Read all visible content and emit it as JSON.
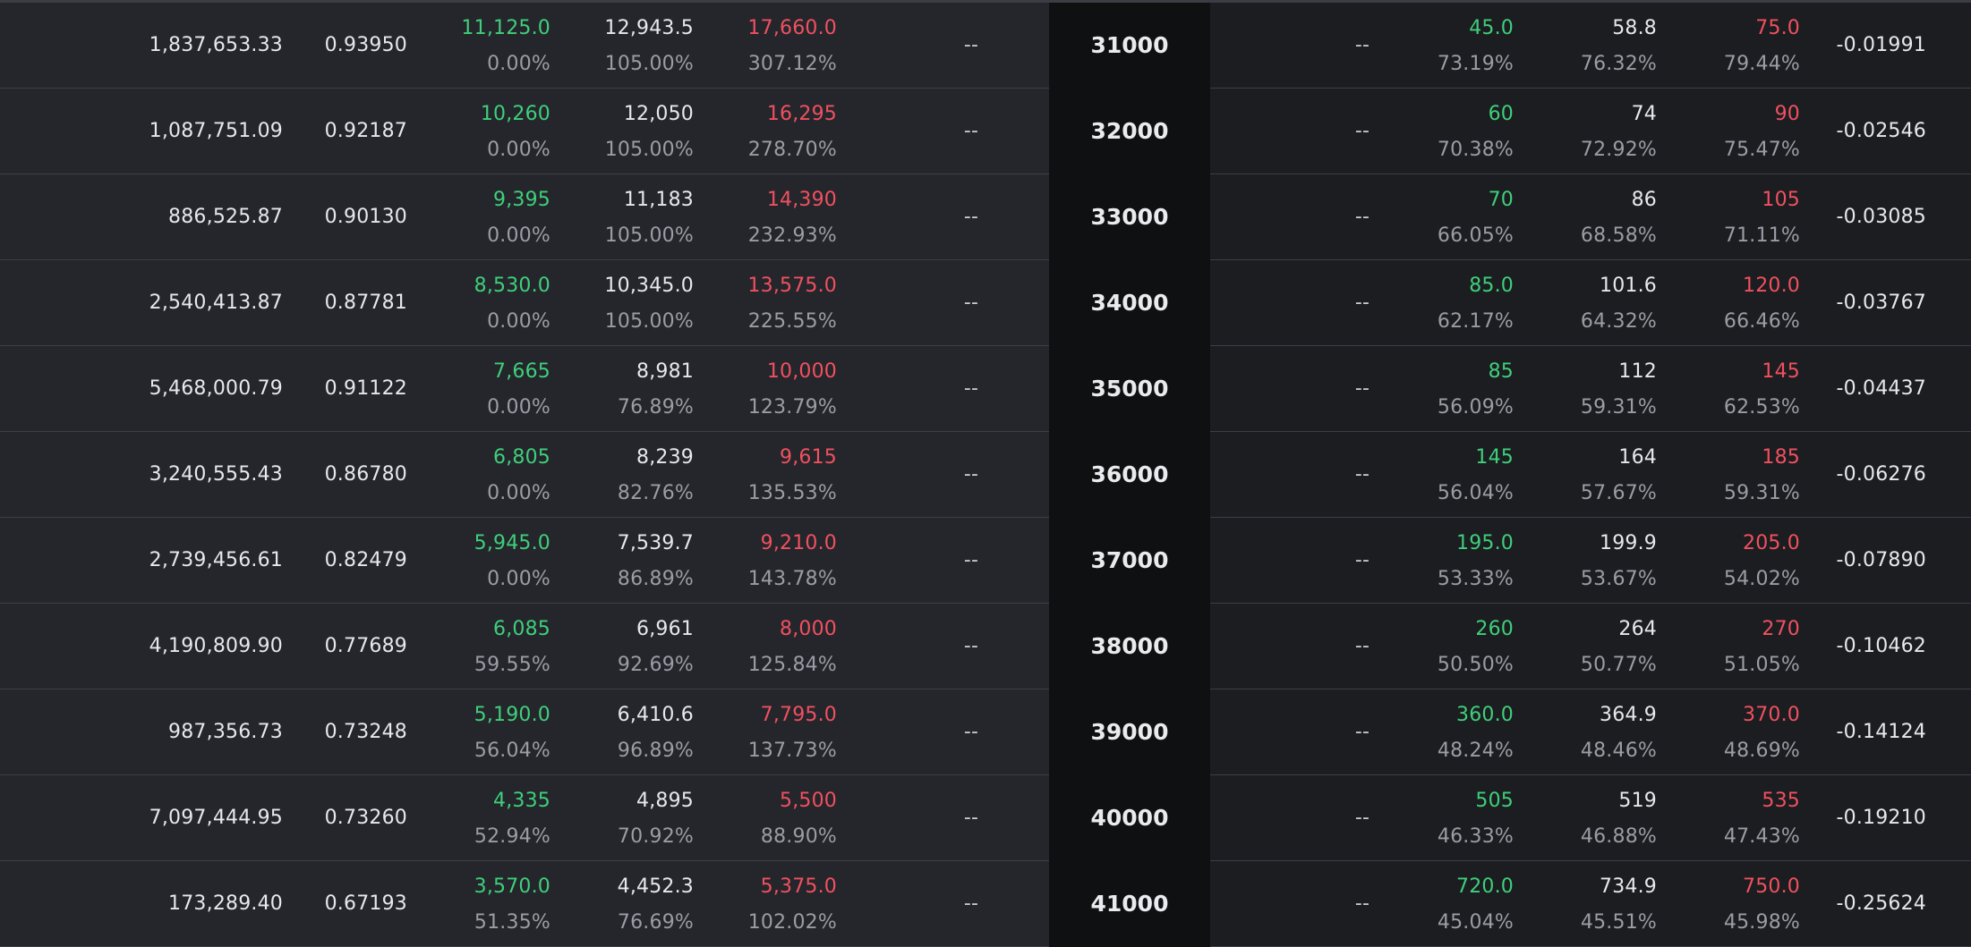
{
  "rows": [
    {
      "strike": "31000",
      "call": {
        "oi": "1,837,653.33",
        "delta": "0.93950",
        "bid": "11,125.0",
        "bid_iv": "0.00%",
        "mark": "12,943.5",
        "mark_iv": "105.00%",
        "ask": "17,660.0",
        "ask_iv": "307.12%",
        "last": "--"
      },
      "put": {
        "last": "--",
        "bid": "45.0",
        "bid_iv": "73.19%",
        "mark": "58.8",
        "mark_iv": "76.32%",
        "ask": "75.0",
        "ask_iv": "79.44%",
        "delta": "-0.01991"
      }
    },
    {
      "strike": "32000",
      "call": {
        "oi": "1,087,751.09",
        "delta": "0.92187",
        "bid": "10,260",
        "bid_iv": "0.00%",
        "mark": "12,050",
        "mark_iv": "105.00%",
        "ask": "16,295",
        "ask_iv": "278.70%",
        "last": "--"
      },
      "put": {
        "last": "--",
        "bid": "60",
        "bid_iv": "70.38%",
        "mark": "74",
        "mark_iv": "72.92%",
        "ask": "90",
        "ask_iv": "75.47%",
        "delta": "-0.02546"
      }
    },
    {
      "strike": "33000",
      "call": {
        "oi": "886,525.87",
        "delta": "0.90130",
        "bid": "9,395",
        "bid_iv": "0.00%",
        "mark": "11,183",
        "mark_iv": "105.00%",
        "ask": "14,390",
        "ask_iv": "232.93%",
        "last": "--"
      },
      "put": {
        "last": "--",
        "bid": "70",
        "bid_iv": "66.05%",
        "mark": "86",
        "mark_iv": "68.58%",
        "ask": "105",
        "ask_iv": "71.11%",
        "delta": "-0.03085"
      }
    },
    {
      "strike": "34000",
      "call": {
        "oi": "2,540,413.87",
        "delta": "0.87781",
        "bid": "8,530.0",
        "bid_iv": "0.00%",
        "mark": "10,345.0",
        "mark_iv": "105.00%",
        "ask": "13,575.0",
        "ask_iv": "225.55%",
        "last": "--"
      },
      "put": {
        "last": "--",
        "bid": "85.0",
        "bid_iv": "62.17%",
        "mark": "101.6",
        "mark_iv": "64.32%",
        "ask": "120.0",
        "ask_iv": "66.46%",
        "delta": "-0.03767"
      }
    },
    {
      "strike": "35000",
      "call": {
        "oi": "5,468,000.79",
        "delta": "0.91122",
        "bid": "7,665",
        "bid_iv": "0.00%",
        "mark": "8,981",
        "mark_iv": "76.89%",
        "ask": "10,000",
        "ask_iv": "123.79%",
        "last": "--"
      },
      "put": {
        "last": "--",
        "bid": "85",
        "bid_iv": "56.09%",
        "mark": "112",
        "mark_iv": "59.31%",
        "ask": "145",
        "ask_iv": "62.53%",
        "delta": "-0.04437"
      }
    },
    {
      "strike": "36000",
      "call": {
        "oi": "3,240,555.43",
        "delta": "0.86780",
        "bid": "6,805",
        "bid_iv": "0.00%",
        "mark": "8,239",
        "mark_iv": "82.76%",
        "ask": "9,615",
        "ask_iv": "135.53%",
        "last": "--"
      },
      "put": {
        "last": "--",
        "bid": "145",
        "bid_iv": "56.04%",
        "mark": "164",
        "mark_iv": "57.67%",
        "ask": "185",
        "ask_iv": "59.31%",
        "delta": "-0.06276"
      }
    },
    {
      "strike": "37000",
      "call": {
        "oi": "2,739,456.61",
        "delta": "0.82479",
        "bid": "5,945.0",
        "bid_iv": "0.00%",
        "mark": "7,539.7",
        "mark_iv": "86.89%",
        "ask": "9,210.0",
        "ask_iv": "143.78%",
        "last": "--"
      },
      "put": {
        "last": "--",
        "bid": "195.0",
        "bid_iv": "53.33%",
        "mark": "199.9",
        "mark_iv": "53.67%",
        "ask": "205.0",
        "ask_iv": "54.02%",
        "delta": "-0.07890"
      }
    },
    {
      "strike": "38000",
      "call": {
        "oi": "4,190,809.90",
        "delta": "0.77689",
        "bid": "6,085",
        "bid_iv": "59.55%",
        "mark": "6,961",
        "mark_iv": "92.69%",
        "ask": "8,000",
        "ask_iv": "125.84%",
        "last": "--"
      },
      "put": {
        "last": "--",
        "bid": "260",
        "bid_iv": "50.50%",
        "mark": "264",
        "mark_iv": "50.77%",
        "ask": "270",
        "ask_iv": "51.05%",
        "delta": "-0.10462"
      }
    },
    {
      "strike": "39000",
      "call": {
        "oi": "987,356.73",
        "delta": "0.73248",
        "bid": "5,190.0",
        "bid_iv": "56.04%",
        "mark": "6,410.6",
        "mark_iv": "96.89%",
        "ask": "7,795.0",
        "ask_iv": "137.73%",
        "last": "--"
      },
      "put": {
        "last": "--",
        "bid": "360.0",
        "bid_iv": "48.24%",
        "mark": "364.9",
        "mark_iv": "48.46%",
        "ask": "370.0",
        "ask_iv": "48.69%",
        "delta": "-0.14124"
      }
    },
    {
      "strike": "40000",
      "call": {
        "oi": "7,097,444.95",
        "delta": "0.73260",
        "bid": "4,335",
        "bid_iv": "52.94%",
        "mark": "4,895",
        "mark_iv": "70.92%",
        "ask": "5,500",
        "ask_iv": "88.90%",
        "last": "--"
      },
      "put": {
        "last": "--",
        "bid": "505",
        "bid_iv": "46.33%",
        "mark": "519",
        "mark_iv": "46.88%",
        "ask": "535",
        "ask_iv": "47.43%",
        "delta": "-0.19210"
      }
    },
    {
      "strike": "41000",
      "call": {
        "oi": "173,289.40",
        "delta": "0.67193",
        "bid": "3,570.0",
        "bid_iv": "51.35%",
        "mark": "4,452.3",
        "mark_iv": "76.69%",
        "ask": "5,375.0",
        "ask_iv": "102.02%",
        "last": "--"
      },
      "put": {
        "last": "--",
        "bid": "720.0",
        "bid_iv": "45.04%",
        "mark": "734.9",
        "mark_iv": "45.51%",
        "ask": "750.0",
        "ask_iv": "45.98%",
        "delta": "-0.25624"
      }
    }
  ]
}
